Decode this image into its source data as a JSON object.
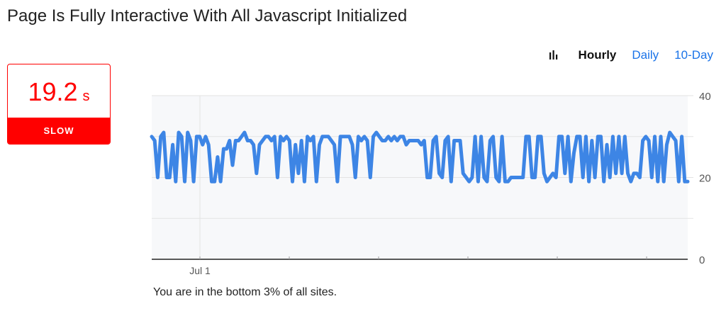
{
  "page": {
    "title": "Page Is Fully Interactive With All Javascript Initialized"
  },
  "metric": {
    "value": "19.2",
    "unit": "s",
    "rating": "SLOW",
    "color": "#ff0000"
  },
  "range_tabs": {
    "icon": "bar-chart-icon",
    "hourly": "Hourly",
    "daily": "Daily",
    "ten_day": "10-Day",
    "active": "Hourly"
  },
  "footnote": "You are in the bottom 3% of all sites.",
  "chart_data": {
    "type": "line",
    "title": "",
    "xlabel": "",
    "ylabel": "",
    "ylim": [
      0,
      40
    ],
    "y_ticks": [
      0,
      20,
      40
    ],
    "x_tick_labels": [
      "Jul 1"
    ],
    "grid": true,
    "color": "#3d85e5",
    "series": [
      {
        "values": [
          30,
          29,
          20,
          30,
          31,
          20,
          20,
          28,
          19,
          31,
          30,
          19,
          31,
          29,
          19,
          30,
          30,
          28,
          30,
          28,
          19,
          19,
          25,
          19,
          27,
          27,
          29,
          23,
          29,
          29,
          30,
          31,
          29,
          29,
          28,
          21,
          28,
          29,
          30,
          30,
          29,
          30,
          20,
          30,
          29,
          30,
          29,
          19,
          28,
          21,
          29,
          19,
          30,
          29,
          30,
          19,
          28,
          30,
          30,
          30,
          29,
          28,
          19,
          30,
          30,
          30,
          30,
          28,
          20,
          30,
          29,
          30,
          29,
          20,
          30,
          31,
          30,
          29,
          29,
          30,
          29,
          30,
          29,
          30,
          30,
          28,
          29,
          29,
          29,
          29,
          28,
          29,
          20,
          20,
          29,
          30,
          21,
          20,
          29,
          30,
          19,
          29,
          29,
          29,
          21,
          20,
          19,
          20,
          30,
          19,
          30,
          20,
          19,
          29,
          30,
          20,
          19,
          30,
          19,
          19,
          20,
          20,
          20,
          20,
          20,
          30,
          30,
          20,
          20,
          30,
          30,
          21,
          19,
          20,
          21,
          20,
          30,
          30,
          21,
          30,
          19,
          26,
          30,
          30,
          20,
          30,
          19,
          29,
          20,
          30,
          30,
          19,
          28,
          20,
          30,
          21,
          30,
          21,
          30,
          21,
          19,
          21,
          21,
          20,
          29,
          30,
          29,
          20,
          30,
          19,
          30,
          19,
          28,
          31,
          30,
          29,
          19,
          30,
          19,
          19
        ]
      }
    ]
  }
}
